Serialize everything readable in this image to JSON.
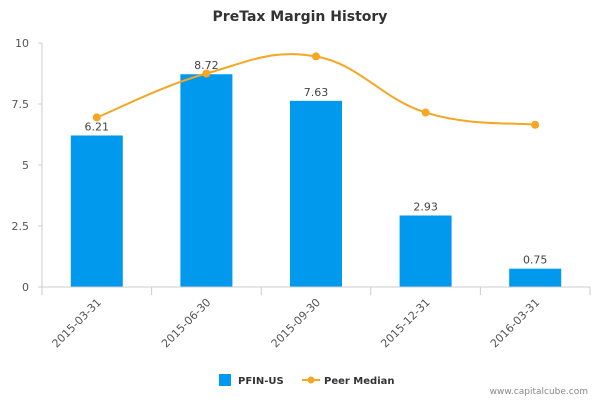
{
  "chart_data": {
    "type": "bar",
    "title": "PreTax Margin History",
    "categories": [
      "2015-03-31",
      "2015-06-30",
      "2015-09-30",
      "2015-12-31",
      "2016-03-31"
    ],
    "series": [
      {
        "name": "PFIN-US",
        "type": "bar",
        "values": [
          6.21,
          8.72,
          7.63,
          2.93,
          0.75
        ],
        "data_labels": [
          "6.21",
          "8.72",
          "7.63",
          "2.93",
          "0.75"
        ]
      },
      {
        "name": "Peer Median",
        "type": "line",
        "values": [
          6.95,
          8.75,
          9.45,
          7.15,
          6.65
        ]
      }
    ],
    "yticks": [
      "0",
      "2.5",
      "5",
      "7.5",
      "10"
    ],
    "ylim": [
      0,
      10
    ],
    "grid": false,
    "legend": "bottom-center"
  },
  "colors": {
    "bar": "#0099ee",
    "line": "#f5a623",
    "axis": "#cccccc"
  },
  "watermark": "www.capitalcube.com"
}
